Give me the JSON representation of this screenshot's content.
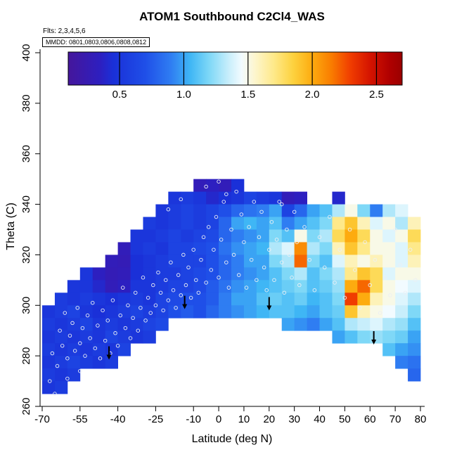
{
  "title": "ATOM1 Southbound C2Cl4_WAS",
  "annotations": {
    "flights": "Flts: 2,3,4,5,6",
    "mmdd": "MMDD: 0801,0803,0806,0808,0812"
  },
  "chart_data": {
    "type": "heatmap",
    "title": "ATOM1 Southbound C2Cl4_WAS",
    "xlabel": "Latitude (deg N)",
    "ylabel": "Theta (C)",
    "xlim": [
      -70,
      80
    ],
    "ylim": [
      260,
      400
    ],
    "x_ticks": [
      -70,
      -55,
      -40,
      -25,
      -10,
      0,
      10,
      20,
      30,
      40,
      50,
      60,
      70,
      80
    ],
    "y_ticks": [
      260,
      280,
      300,
      320,
      340,
      360,
      380,
      400
    ],
    "colorbar": {
      "vmin": 0.1,
      "vmax": 2.7,
      "ticks": [
        0.5,
        1.0,
        1.5,
        2.0,
        2.5
      ],
      "stops": [
        {
          "v": 0.1,
          "c": "#45169b"
        },
        {
          "v": 0.35,
          "c": "#2d1fc0"
        },
        {
          "v": 0.45,
          "c": "#1a30d8"
        },
        {
          "v": 0.7,
          "c": "#1f4fe8"
        },
        {
          "v": 0.9,
          "c": "#2f7df2"
        },
        {
          "v": 1.05,
          "c": "#3fb6f5"
        },
        {
          "v": 1.2,
          "c": "#7fd8f7"
        },
        {
          "v": 1.35,
          "c": "#c8eefb"
        },
        {
          "v": 1.45,
          "c": "#f2fbff"
        },
        {
          "v": 1.55,
          "c": "#fdf6cf"
        },
        {
          "v": 1.7,
          "c": "#fee98a"
        },
        {
          "v": 1.85,
          "c": "#fdd23f"
        },
        {
          "v": 2.0,
          "c": "#fdab0f"
        },
        {
          "v": 2.15,
          "c": "#f97c00"
        },
        {
          "v": 2.3,
          "c": "#f03c00"
        },
        {
          "v": 2.45,
          "c": "#d41400"
        },
        {
          "v": 2.6,
          "c": "#b00000"
        },
        {
          "v": 2.7,
          "c": "#9a0000"
        }
      ]
    },
    "grid": {
      "lat_start": -70,
      "dlat": 5,
      "dtheta": 5,
      "rows": [
        {
          "theta": 347.5,
          "v": [
            null,
            null,
            null,
            null,
            null,
            null,
            null,
            null,
            null,
            null,
            null,
            null,
            0.3,
            0.35,
            0.3,
            0.45,
            null,
            null,
            null,
            null,
            null,
            null,
            null,
            null,
            null,
            null,
            null,
            null,
            null,
            null
          ]
        },
        {
          "theta": 342.5,
          "v": [
            null,
            null,
            null,
            null,
            null,
            null,
            null,
            null,
            null,
            null,
            0.5,
            0.55,
            0.5,
            0.4,
            0.45,
            0.5,
            0.6,
            0.55,
            0.5,
            0.3,
            0.35,
            null,
            null,
            0.4,
            null,
            null,
            null,
            null,
            null,
            null
          ]
        },
        {
          "theta": 337.5,
          "v": [
            null,
            null,
            null,
            null,
            null,
            null,
            null,
            null,
            null,
            0.5,
            0.55,
            0.6,
            0.55,
            0.6,
            0.7,
            0.8,
            0.85,
            0.9,
            1.0,
            0.6,
            0.8,
            1.0,
            1.1,
            1.3,
            1.5,
            1.2,
            0.9,
            1.3,
            1.4,
            null
          ]
        },
        {
          "theta": 332.5,
          "v": [
            null,
            null,
            null,
            null,
            null,
            null,
            null,
            null,
            0.55,
            0.5,
            0.55,
            0.6,
            0.55,
            0.6,
            0.8,
            1.0,
            1.05,
            1.0,
            1.1,
            0.9,
            1.0,
            1.1,
            1.2,
            1.7,
            1.9,
            1.6,
            1.4,
            1.5,
            1.3,
            1.6
          ]
        },
        {
          "theta": 327.5,
          "v": [
            null,
            null,
            null,
            null,
            null,
            null,
            null,
            0.5,
            0.5,
            0.55,
            0.6,
            0.55,
            0.6,
            0.65,
            0.8,
            0.9,
            0.95,
            1.0,
            1.2,
            1.1,
            1.5,
            1.2,
            1.3,
            1.8,
            2.0,
            1.8,
            1.5,
            1.4,
            1.5,
            1.8
          ]
        },
        {
          "theta": 322.5,
          "v": [
            null,
            null,
            null,
            null,
            null,
            null,
            0.3,
            0.5,
            0.55,
            0.5,
            0.6,
            0.6,
            0.65,
            0.7,
            0.85,
            0.95,
            1.0,
            1.05,
            1.3,
            1.4,
            2.1,
            1.3,
            1.2,
            1.6,
            1.9,
            1.7,
            1.5,
            1.5,
            1.4,
            1.7
          ]
        },
        {
          "theta": 317.5,
          "v": [
            null,
            null,
            null,
            null,
            null,
            0.3,
            0.28,
            0.45,
            0.5,
            0.55,
            0.6,
            0.6,
            0.6,
            0.7,
            0.8,
            0.9,
            1.0,
            1.0,
            1.2,
            1.3,
            2.2,
            1.2,
            1.1,
            1.4,
            1.6,
            1.5,
            1.6,
            1.5,
            1.4,
            1.6
          ]
        },
        {
          "theta": 312.5,
          "v": [
            null,
            null,
            null,
            0.5,
            0.35,
            0.28,
            0.3,
            0.45,
            0.5,
            0.55,
            0.55,
            0.6,
            0.65,
            0.7,
            0.8,
            0.9,
            0.95,
            1.0,
            1.1,
            1.2,
            1.3,
            1.1,
            1.2,
            1.3,
            1.7,
            1.9,
            1.8,
            1.4,
            1.5,
            1.5
          ]
        },
        {
          "theta": 307.5,
          "v": [
            null,
            null,
            0.5,
            0.5,
            0.4,
            0.3,
            0.35,
            0.5,
            0.5,
            0.55,
            0.6,
            0.6,
            0.65,
            0.75,
            0.85,
            0.95,
            1.0,
            1.05,
            1.1,
            1.15,
            1.2,
            1.1,
            1.15,
            1.25,
            2.0,
            2.2,
            1.8,
            1.5,
            1.45,
            1.4
          ]
        },
        {
          "theta": 302.5,
          "v": [
            null,
            0.55,
            0.5,
            0.55,
            0.5,
            0.45,
            0.5,
            0.55,
            0.5,
            0.6,
            0.65,
            0.7,
            0.7,
            0.75,
            0.9,
            1.0,
            1.0,
            1.1,
            1.15,
            1.1,
            1.15,
            1.05,
            1.1,
            1.2,
            2.3,
            2.0,
            1.6,
            1.5,
            1.4,
            1.3
          ]
        },
        {
          "theta": 297.5,
          "v": [
            0.5,
            0.55,
            0.6,
            0.5,
            0.45,
            0.5,
            0.55,
            0.6,
            0.55,
            0.6,
            0.7,
            0.75,
            0.7,
            0.8,
            0.9,
            0.95,
            1.0,
            1.05,
            1.1,
            1.1,
            1.05,
            1.0,
            1.1,
            1.15,
            1.9,
            1.6,
            1.5,
            1.45,
            1.35,
            1.2
          ]
        },
        {
          "theta": 292.5,
          "v": [
            0.55,
            0.5,
            0.55,
            0.6,
            0.5,
            0.55,
            0.5,
            0.55,
            0.6,
            0.65,
            null,
            null,
            null,
            null,
            null,
            null,
            null,
            null,
            null,
            1.0,
            0.95,
            0.9,
            1.0,
            1.1,
            1.3,
            1.35,
            1.4,
            1.3,
            1.25,
            1.1
          ]
        },
        {
          "theta": 287.5,
          "v": [
            0.5,
            0.55,
            0.5,
            0.55,
            0.5,
            0.6,
            0.55,
            0.5,
            0.55,
            null,
            null,
            null,
            null,
            null,
            null,
            null,
            null,
            null,
            null,
            null,
            null,
            null,
            null,
            1.0,
            1.1,
            1.2,
            1.25,
            1.2,
            1.15,
            1.0
          ]
        },
        {
          "theta": 282.5,
          "v": [
            0.55,
            0.5,
            0.55,
            0.5,
            0.55,
            0.5,
            0.6,
            null,
            null,
            null,
            null,
            null,
            null,
            null,
            null,
            null,
            null,
            null,
            null,
            null,
            null,
            null,
            null,
            null,
            null,
            null,
            null,
            1.1,
            1.0,
            0.95
          ]
        },
        {
          "theta": 277.5,
          "v": [
            0.5,
            0.55,
            0.6,
            0.55,
            0.5,
            0.55,
            null,
            null,
            null,
            null,
            null,
            null,
            null,
            null,
            null,
            null,
            null,
            null,
            null,
            null,
            null,
            null,
            null,
            null,
            null,
            null,
            null,
            null,
            0.9,
            0.85
          ]
        },
        {
          "theta": 272.5,
          "v": [
            0.55,
            0.5,
            0.55,
            null,
            null,
            null,
            null,
            null,
            null,
            null,
            null,
            null,
            null,
            null,
            null,
            null,
            null,
            null,
            null,
            null,
            null,
            null,
            null,
            null,
            null,
            null,
            null,
            null,
            null,
            0.8
          ]
        },
        {
          "theta": 267.5,
          "v": [
            0.5,
            0.55,
            null,
            null,
            null,
            null,
            null,
            null,
            null,
            null,
            null,
            null,
            null,
            null,
            null,
            null,
            null,
            null,
            null,
            null,
            null,
            null,
            null,
            null,
            null,
            null,
            null,
            null,
            null,
            null
          ]
        }
      ]
    },
    "sample_points": [
      [
        -67,
        270
      ],
      [
        -65,
        265
      ],
      [
        -66,
        281
      ],
      [
        -64,
        276
      ],
      [
        -63,
        290
      ],
      [
        -62,
        284
      ],
      [
        -61,
        297
      ],
      [
        -60,
        279
      ],
      [
        -60,
        271
      ],
      [
        -59,
        288
      ],
      [
        -58,
        293
      ],
      [
        -57,
        282
      ],
      [
        -56,
        299
      ],
      [
        -55,
        285
      ],
      [
        -55,
        274
      ],
      [
        -54,
        291
      ],
      [
        -53,
        280
      ],
      [
        -52,
        296
      ],
      [
        -51,
        287
      ],
      [
        -50,
        301
      ],
      [
        -49,
        283
      ],
      [
        -48,
        292
      ],
      [
        -47,
        279
      ],
      [
        -46,
        298
      ],
      [
        -45,
        286
      ],
      [
        -44,
        294
      ],
      [
        -43,
        281
      ],
      [
        -42,
        302
      ],
      [
        -41,
        289
      ],
      [
        -40,
        284
      ],
      [
        -39,
        296
      ],
      [
        -38,
        307
      ],
      [
        -37,
        291
      ],
      [
        -36,
        300
      ],
      [
        -35,
        287
      ],
      [
        -34,
        295
      ],
      [
        -33,
        305
      ],
      [
        -32,
        290
      ],
      [
        -31,
        299
      ],
      [
        -30,
        311
      ],
      [
        -29,
        294
      ],
      [
        -28,
        303
      ],
      [
        -27,
        297
      ],
      [
        -26,
        308
      ],
      [
        -25,
        300
      ],
      [
        -24,
        313
      ],
      [
        -23,
        305
      ],
      [
        -22,
        298
      ],
      [
        -21,
        310
      ],
      [
        -20,
        302
      ],
      [
        -19,
        317
      ],
      [
        -18,
        306
      ],
      [
        -17,
        299
      ],
      [
        -16,
        312
      ],
      [
        -15,
        304
      ],
      [
        -14,
        320
      ],
      [
        -13,
        308
      ],
      [
        -12,
        315
      ],
      [
        -11,
        303
      ],
      [
        -10,
        322
      ],
      [
        -9,
        310
      ],
      [
        -8,
        305
      ],
      [
        -7,
        318
      ],
      [
        -6,
        327
      ],
      [
        -5,
        309
      ],
      [
        -5,
        347
      ],
      [
        -4,
        331
      ],
      [
        -3,
        314
      ],
      [
        -2,
        322
      ],
      [
        -1,
        335
      ],
      [
        0,
        311
      ],
      [
        0,
        349
      ],
      [
        1,
        326
      ],
      [
        2,
        341
      ],
      [
        3,
        317
      ],
      [
        3,
        344
      ],
      [
        4,
        307
      ],
      [
        5,
        330
      ],
      [
        6,
        320
      ],
      [
        7,
        345
      ],
      [
        8,
        312
      ],
      [
        9,
        336
      ],
      [
        10,
        325
      ],
      [
        11,
        307
      ],
      [
        12,
        331
      ],
      [
        13,
        318
      ],
      [
        14,
        341
      ],
      [
        15,
        310
      ],
      [
        -20,
        338
      ],
      [
        -15,
        342
      ],
      [
        16,
        327
      ],
      [
        17,
        337
      ],
      [
        18,
        315
      ],
      [
        19,
        306
      ],
      [
        20,
        322
      ],
      [
        21,
        333
      ],
      [
        22,
        310
      ],
      [
        23,
        326
      ],
      [
        24,
        341
      ],
      [
        25,
        317
      ],
      [
        25,
        340
      ],
      [
        26,
        305
      ],
      [
        27,
        330
      ],
      [
        28,
        320
      ],
      [
        29,
        311
      ],
      [
        30,
        337
      ],
      [
        31,
        325
      ],
      [
        32,
        308
      ],
      [
        34,
        331
      ],
      [
        36,
        318
      ],
      [
        38,
        306
      ],
      [
        40,
        327
      ],
      [
        42,
        315
      ],
      [
        44,
        335
      ],
      [
        46,
        309
      ],
      [
        48,
        322
      ],
      [
        50,
        303
      ],
      [
        52,
        330
      ],
      [
        54,
        314
      ],
      [
        56,
        299
      ],
      [
        58,
        325
      ],
      [
        60,
        308
      ],
      [
        62,
        318
      ],
      [
        64,
        297
      ],
      [
        66,
        311
      ],
      [
        68,
        304
      ],
      [
        70,
        330
      ],
      [
        72,
        316
      ],
      [
        74,
        305
      ],
      [
        76,
        322
      ],
      [
        78,
        310
      ]
    ],
    "arrows": [
      [
        -43.5,
        278.5
      ],
      [
        -13.5,
        298.5
      ],
      [
        20,
        298
      ],
      [
        61.5,
        284.5
      ]
    ]
  }
}
